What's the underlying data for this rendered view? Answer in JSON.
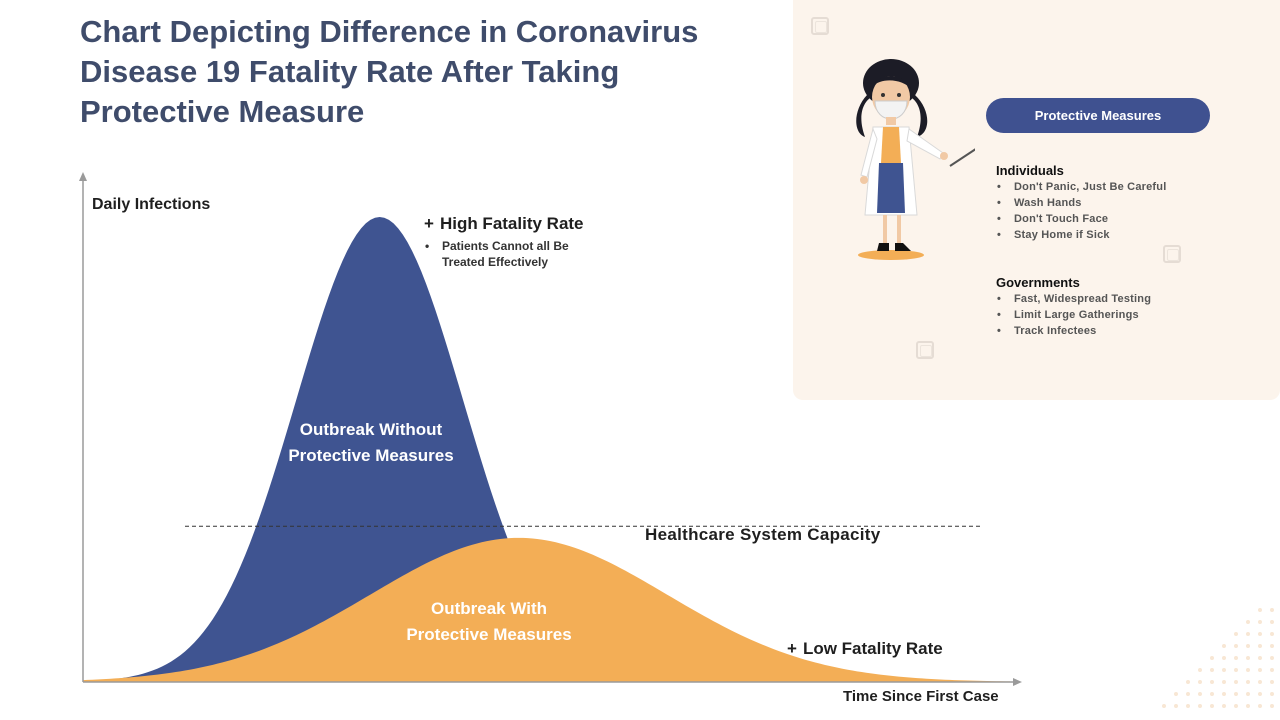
{
  "title": "Chart Depicting Difference in Coronavirus Disease 19 Fatality Rate After Taking Protective Measure",
  "colors": {
    "without_measures": "#3f5491",
    "with_measures": "#f3ae56",
    "title": "#3f4c6b",
    "panel_bg": "#fcf4ec",
    "pill": "#3f5190"
  },
  "chart_data": {
    "type": "area",
    "title": "Chart Depicting Difference in Coronavirus Disease 19 Fatality Rate After Taking Protective Measure",
    "xlabel": "Time Since First Case",
    "ylabel": "Daily Infections",
    "x_range": [
      0,
      100
    ],
    "y_range": [
      0,
      100
    ],
    "grid": false,
    "series": [
      {
        "name": "Outbreak Without Protective Measures",
        "label_lines": [
          "Outbreak Without",
          "Protective Measures"
        ],
        "peak_x": 32,
        "peak_y": 100,
        "spread": 9
      },
      {
        "name": "Outbreak With Protective Measures",
        "label_lines": [
          "Outbreak With",
          "Protective Measures"
        ],
        "peak_x": 47,
        "peak_y": 31,
        "spread": 16
      }
    ],
    "reference_line": {
      "name": "Healthcare System Capacity",
      "label": "Healthcare System Capacity",
      "y": 33.5
    },
    "annotations": [
      {
        "id": "high",
        "heading": "High Fatality Rate",
        "marker": "+",
        "bullets": [
          "Patients Cannot all Be Treated Effectively"
        ]
      },
      {
        "id": "low",
        "heading": "Low Fatality Rate",
        "marker": "+",
        "bullets": []
      }
    ]
  },
  "panel": {
    "pill_label": "Protective Measures",
    "illustration_icon": "doctor-with-mask-icon",
    "groups": [
      {
        "title": "Individuals",
        "items": [
          "Don't Panic, Just Be Careful",
          "Wash Hands",
          "Don't Touch Face",
          "Stay Home if Sick"
        ]
      },
      {
        "title": "Governments",
        "items": [
          "Fast, Widespread Testing",
          "Limit Large Gatherings",
          "Track Infectees"
        ]
      }
    ]
  }
}
